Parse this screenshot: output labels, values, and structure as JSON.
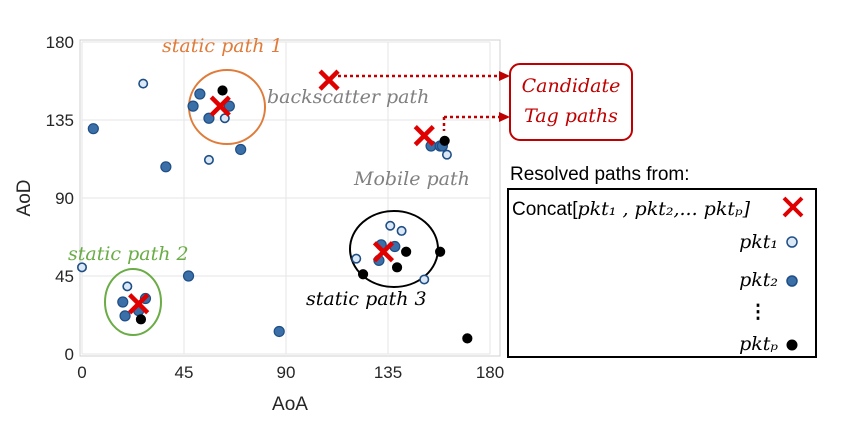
{
  "chart_data": {
    "type": "scatter",
    "xlabel": "AoA",
    "ylabel": "AoD",
    "xlim": [
      0,
      180
    ],
    "ylim": [
      0,
      180
    ],
    "xticks": [
      "0",
      "45",
      "90",
      "135",
      "180"
    ],
    "yticks": [
      "0",
      "45",
      "90",
      "135",
      "180"
    ],
    "grid": true,
    "series": [
      {
        "name": "pkt_1",
        "marker": "hollow",
        "points": [
          [
            27,
            156
          ],
          [
            63,
            136
          ],
          [
            56,
            112
          ],
          [
            161,
            115
          ],
          [
            0,
            50
          ],
          [
            20,
            39
          ],
          [
            136,
            74
          ],
          [
            141,
            71
          ],
          [
            151,
            43
          ],
          [
            121,
            55
          ]
        ]
      },
      {
        "name": "pkt_2",
        "marker": "filled-blue",
        "points": [
          [
            5,
            130
          ],
          [
            37,
            108
          ],
          [
            70,
            118
          ],
          [
            52,
            150
          ],
          [
            49,
            143
          ],
          [
            56,
            136
          ],
          [
            65,
            143
          ],
          [
            47,
            45
          ],
          [
            87,
            13
          ],
          [
            18,
            30
          ],
          [
            28,
            32
          ],
          [
            25,
            25
          ],
          [
            19,
            22
          ],
          [
            132,
            63
          ],
          [
            138,
            62
          ],
          [
            131,
            54
          ],
          [
            154,
            120
          ],
          [
            158,
            120
          ],
          [
            159,
            120
          ]
        ]
      },
      {
        "name": "pkt_P",
        "marker": "black",
        "points": [
          [
            62,
            152
          ],
          [
            160,
            123
          ],
          [
            158,
            59
          ],
          [
            124,
            46
          ],
          [
            139,
            50
          ],
          [
            143,
            59
          ],
          [
            26,
            20
          ],
          [
            170,
            9
          ]
        ]
      }
    ],
    "resolved_paths": [
      [
        61,
        143
      ],
      [
        25,
        29
      ],
      [
        133,
        59
      ],
      [
        151,
        126
      ],
      [
        109,
        158
      ]
    ],
    "annotations": [
      {
        "text": "static path 1",
        "color": "#e07b39"
      },
      {
        "text": "backscatter path",
        "color": "#808080"
      },
      {
        "text": "Mobile path",
        "color": "#808080"
      },
      {
        "text": "static path 2",
        "color": "#6aac46"
      },
      {
        "text": "static path 3",
        "color": "#000000"
      }
    ],
    "callout": {
      "line1": "Candidate",
      "line2": "Tag paths",
      "color": "#c00000"
    },
    "legend": {
      "title": "Resolved paths from:",
      "concat_prefix": "Concat[",
      "concat_items": "pkt₁ , pkt₂,... pktₚ]",
      "entries": [
        "pkt₁",
        "pkt₂",
        "⋮",
        "pktₚ"
      ]
    }
  },
  "colors": {
    "blue_fill": "#3b6fa8",
    "light_fill": "#dbe8f5",
    "marker_edge": "#1f4e86",
    "black": "#000000",
    "red": "#e00000",
    "orange": "#e07b39",
    "green": "#6aac46",
    "grey": "#808080"
  }
}
